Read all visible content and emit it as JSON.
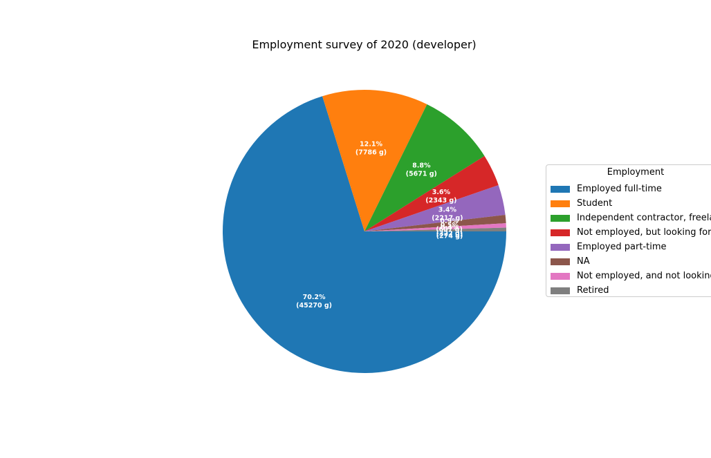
{
  "chart_data": {
    "type": "pie",
    "title": "Employment survey of 2020 (developer)",
    "legend_title": "Employment",
    "legend_position": "right",
    "slices": [
      {
        "label": "Employed full-time",
        "value": 45270,
        "percent_label": "70.2%",
        "value_label": "(45270 g)",
        "color": "#1f77b4"
      },
      {
        "label": "Student",
        "value": 7786,
        "percent_label": "12.1%",
        "value_label": "(7786 g)",
        "color": "#ff7f0e"
      },
      {
        "label": "Independent contractor, freelancer, or self-employed",
        "value": 5671,
        "percent_label": "8.8%",
        "value_label": "(5671 g)",
        "color": "#2ca02c"
      },
      {
        "label": "Not employed, but looking for work",
        "value": 2343,
        "percent_label": "3.6%",
        "value_label": "(2343 g)",
        "color": "#d62728"
      },
      {
        "label": "Employed part-time",
        "value": 2217,
        "percent_label": "3.4%",
        "value_label": "(2217 g)",
        "color": "#9467bd"
      },
      {
        "label": "NA",
        "value": 607,
        "percent_label": "0.9%",
        "value_label": "(607 g)",
        "color": "#8c564b"
      },
      {
        "label": "Not employed, and not looking for work",
        "value": 322,
        "percent_label": "0.5%",
        "value_label": "(322 g)",
        "color": "#e377c2"
      },
      {
        "label": "Retired",
        "value": 274,
        "percent_label": "0.4%",
        "value_label": "(274 g)",
        "color": "#7f7f7f"
      }
    ]
  }
}
